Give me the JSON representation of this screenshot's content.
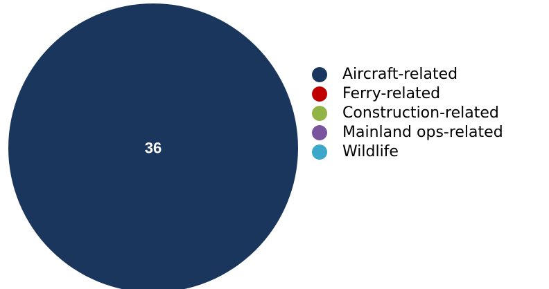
{
  "chart_data": {
    "type": "pie",
    "title": "",
    "categories": [
      "Aircraft-related",
      "Ferry-related",
      "Construction-related",
      "Mainland ops-related",
      "Wildlife"
    ],
    "values": [
      36,
      0,
      0,
      0,
      0
    ],
    "data_labels": [
      "36"
    ],
    "colors": [
      "#1b365d",
      "#c00000",
      "#92b447",
      "#7b549e",
      "#3ba7c9"
    ],
    "data_label_color": "#ffffff",
    "legend": {
      "placement": "right",
      "items": [
        {
          "label": "Aircraft-related",
          "color": "#1b365d"
        },
        {
          "label": "Ferry-related",
          "color": "#c00000"
        },
        {
          "label": "Construction-related",
          "color": "#92b447"
        },
        {
          "label": "Mainland ops-related",
          "color": "#7b549e"
        },
        {
          "label": "Wildlife",
          "color": "#3ba7c9"
        }
      ]
    }
  }
}
